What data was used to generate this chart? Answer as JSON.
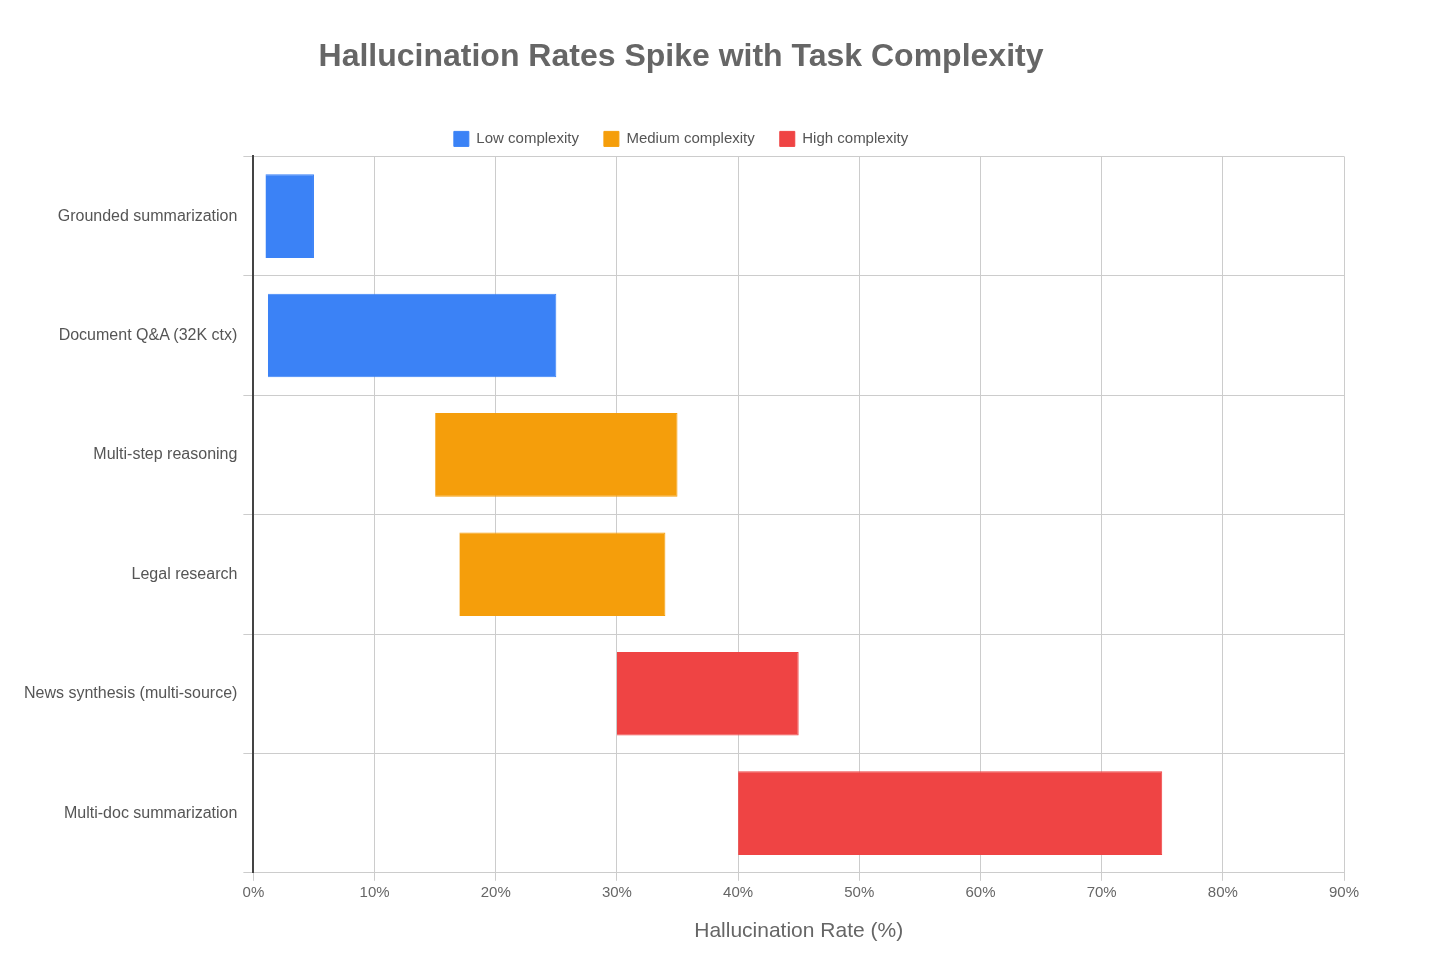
{
  "chart_data": {
    "type": "bar",
    "title": "Hallucination Rates Spike with Task Complexity",
    "xlabel": "Hallucination Rate (%)",
    "orientation": "horizontal",
    "categories": [
      "Grounded summarization",
      "Document Q&A (32K ctx)",
      "Multi-step reasoning",
      "Legal research",
      "News synthesis (multi-source)",
      "Multi-doc summarization"
    ],
    "series": [
      {
        "name": "Low complexity",
        "color": "#3b82f6",
        "values": [
          4,
          23.8,
          null,
          null,
          null,
          null
        ],
        "base": [
          1,
          1.2,
          null,
          null,
          null,
          null
        ]
      },
      {
        "name": "Medium complexity",
        "color": "#f59e0b",
        "values": [
          null,
          null,
          20,
          17,
          null,
          null
        ],
        "base": [
          null,
          null,
          15,
          17,
          null,
          null
        ]
      },
      {
        "name": "High complexity",
        "color": "#ef4444",
        "values": [
          null,
          null,
          null,
          null,
          15,
          35
        ],
        "base": [
          null,
          null,
          null,
          null,
          30,
          40
        ]
      }
    ],
    "xlim": [
      0,
      90
    ],
    "xticks": [
      {
        "value": 0,
        "label": "0%"
      },
      {
        "value": 10,
        "label": "10%"
      },
      {
        "value": 20,
        "label": "20%"
      },
      {
        "value": 30,
        "label": "30%"
      },
      {
        "value": 40,
        "label": "40%"
      },
      {
        "value": 50,
        "label": "50%"
      },
      {
        "value": 60,
        "label": "60%"
      },
      {
        "value": 70,
        "label": "70%"
      },
      {
        "value": 80,
        "label": "80%"
      },
      {
        "value": 90,
        "label": "90%"
      }
    ],
    "grid": true,
    "legend": "top"
  }
}
